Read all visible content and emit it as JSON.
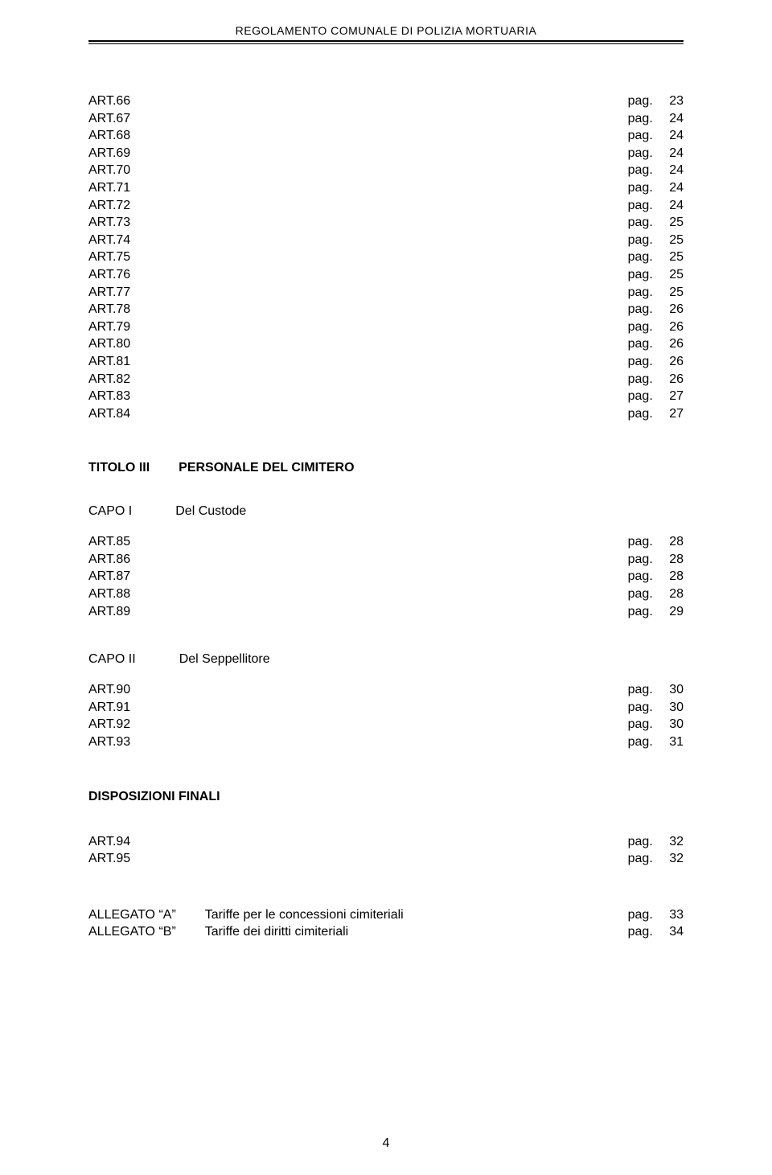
{
  "header": {
    "title": "REGOLAMENTO COMUNALE DI POLIZIA MORTUARIA"
  },
  "page_label": "pag.",
  "block1": [
    {
      "art": "ART.66",
      "page": "23"
    },
    {
      "art": "ART.67",
      "page": "24"
    },
    {
      "art": "ART.68",
      "page": "24"
    },
    {
      "art": "ART.69",
      "page": "24"
    },
    {
      "art": "ART.70",
      "page": "24"
    },
    {
      "art": "ART.71",
      "page": "24"
    },
    {
      "art": "ART.72",
      "page": "24"
    },
    {
      "art": "ART.73",
      "page": "25"
    },
    {
      "art": "ART.74",
      "page": "25"
    },
    {
      "art": "ART.75",
      "page": "25"
    },
    {
      "art": "ART.76",
      "page": "25"
    },
    {
      "art": "ART.77",
      "page": "25"
    },
    {
      "art": "ART.78",
      "page": "26"
    },
    {
      "art": "ART.79",
      "page": "26"
    },
    {
      "art": "ART.80",
      "page": "26"
    },
    {
      "art": "ART.81",
      "page": "26"
    },
    {
      "art": "ART.82",
      "page": "26"
    },
    {
      "art": "ART.83",
      "page": "27"
    },
    {
      "art": "ART.84",
      "page": "27"
    }
  ],
  "titolo3": {
    "label": "TITOLO  III",
    "title": "PERSONALE  DEL  CIMITERO"
  },
  "capo1": {
    "label": "CAPO  I",
    "title": "Del Custode"
  },
  "block2": [
    {
      "art": "ART.85",
      "page": "28"
    },
    {
      "art": "ART.86",
      "page": "28"
    },
    {
      "art": "ART.87",
      "page": "28"
    },
    {
      "art": "ART.88",
      "page": "28"
    },
    {
      "art": "ART.89",
      "page": "29"
    }
  ],
  "capo2": {
    "label": "CAPO  II",
    "title": "Del Seppellitore"
  },
  "block3": [
    {
      "art": "ART.90",
      "page": "30"
    },
    {
      "art": "ART.91",
      "page": "30"
    },
    {
      "art": "ART.92",
      "page": "30"
    },
    {
      "art": "ART.93",
      "page": "31"
    }
  ],
  "disposizioni": {
    "title": "DISPOSIZIONI FINALI"
  },
  "block4": [
    {
      "art": "ART.94",
      "page": "32"
    },
    {
      "art": "ART.95",
      "page": "32"
    }
  ],
  "allegati": [
    {
      "left": "ALLEGATO  \"A\"",
      "mid": "Tariffe per le concessioni cimiteriali",
      "page": "33"
    },
    {
      "left": "ALLEGATO  \"B\"",
      "mid": "Tariffe dei diritti cimiteriali",
      "page": "34"
    }
  ],
  "page_number": "4"
}
